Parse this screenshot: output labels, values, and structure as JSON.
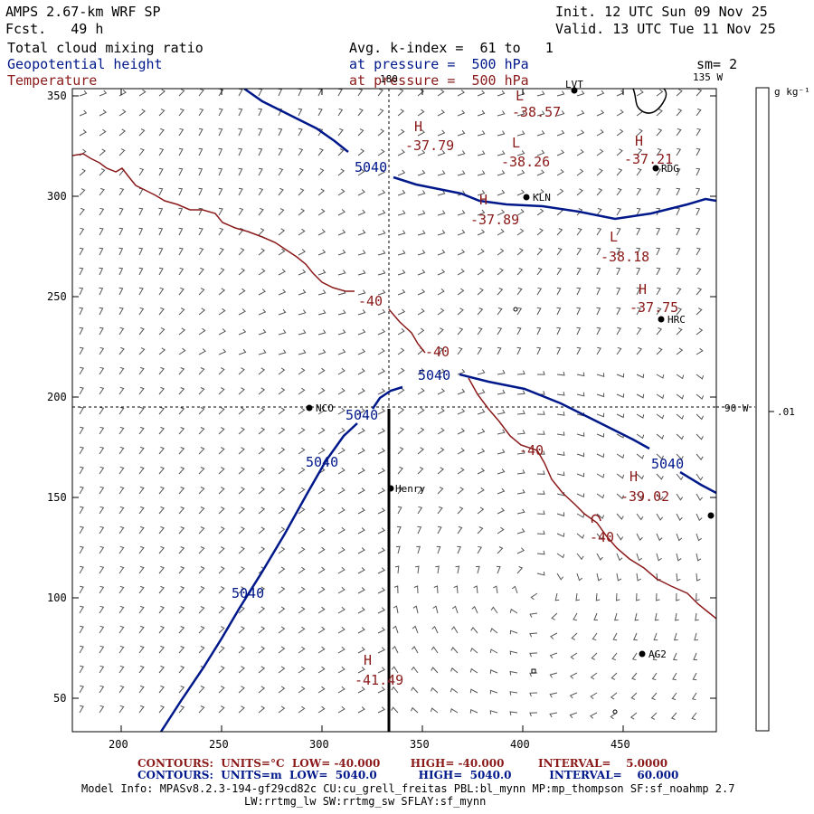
{
  "header": {
    "title": "AMPS 2.67-km WRF SP",
    "forecast": "Fcst.   49 h",
    "init": "Init. 12 UTC Sun 09 Nov 25",
    "valid": "Valid. 13 UTC Tue 11 Nov 25"
  },
  "fields": {
    "field1": "Total cloud mixing ratio",
    "field2": "Geopotential height",
    "field3": "Temperature",
    "avg": "Avg. k-index =  61 to   1",
    "pressure1": "at pressure =  500 hPa",
    "pressure2": "at pressure =  500 hPa",
    "smoothing": "sm= 2"
  },
  "colorbar": {
    "unit": "g kg⁻¹",
    "tick_label": ".01"
  },
  "longitude_labels": {
    "top_180": "180",
    "top_135w": "135 W",
    "right_90w": "90 W"
  },
  "axes": {
    "x_ticks": [
      "200",
      "250",
      "300",
      "350",
      "400",
      "450"
    ],
    "y_ticks": [
      "350",
      "300",
      "250",
      "200",
      "150",
      "100",
      "50"
    ]
  },
  "stations": [
    {
      "name": "LVT"
    },
    {
      "name": "RDG"
    },
    {
      "name": "KLN"
    },
    {
      "name": "HRC"
    },
    {
      "name": "NCO"
    },
    {
      "name": "Henry"
    },
    {
      "name": "AG2"
    },
    {
      "name": ""
    }
  ],
  "height_labels": [
    "5040",
    "5040",
    "5040",
    "5040",
    "5040",
    "5040"
  ],
  "temperature_labels": [
    "-40",
    "-40",
    "-40",
    "-40"
  ],
  "extrema": [
    {
      "type": "L",
      "value": "-38.57"
    },
    {
      "type": "H",
      "value": "-37.79"
    },
    {
      "type": "L",
      "value": "-38.26"
    },
    {
      "type": "H",
      "value": "-37.21"
    },
    {
      "type": "H",
      "value": "-37.89"
    },
    {
      "type": "L",
      "value": "-38.18"
    },
    {
      "type": "H",
      "value": "-37.75"
    },
    {
      "type": "H",
      "value": "-39.02"
    },
    {
      "type": "H",
      "value": "-41.49"
    }
  ],
  "footer": {
    "line1": "CONTOURS:  UNITS=°C  LOW= -40.000        HIGH= -40.000         INTERVAL=    5.0000",
    "line2": "CONTOURS:  UNITS=m  LOW=  5040.0           HIGH=  5040.0          INTERVAL=    60.000",
    "model1": "Model Info: MPASv8.2.3-194-gf29cd82c CU:cu_grell_freitas PBL:bl_mynn MP:mp_thompson SF:sf_noahmp 2.7",
    "model2": "LW:rrtmg_lw SW:rrtmg_sw SFLAY:sf_mynn"
  },
  "colors": {
    "height": "#00188a",
    "temperature": "#8b1a1a",
    "wind": "#555555"
  }
}
